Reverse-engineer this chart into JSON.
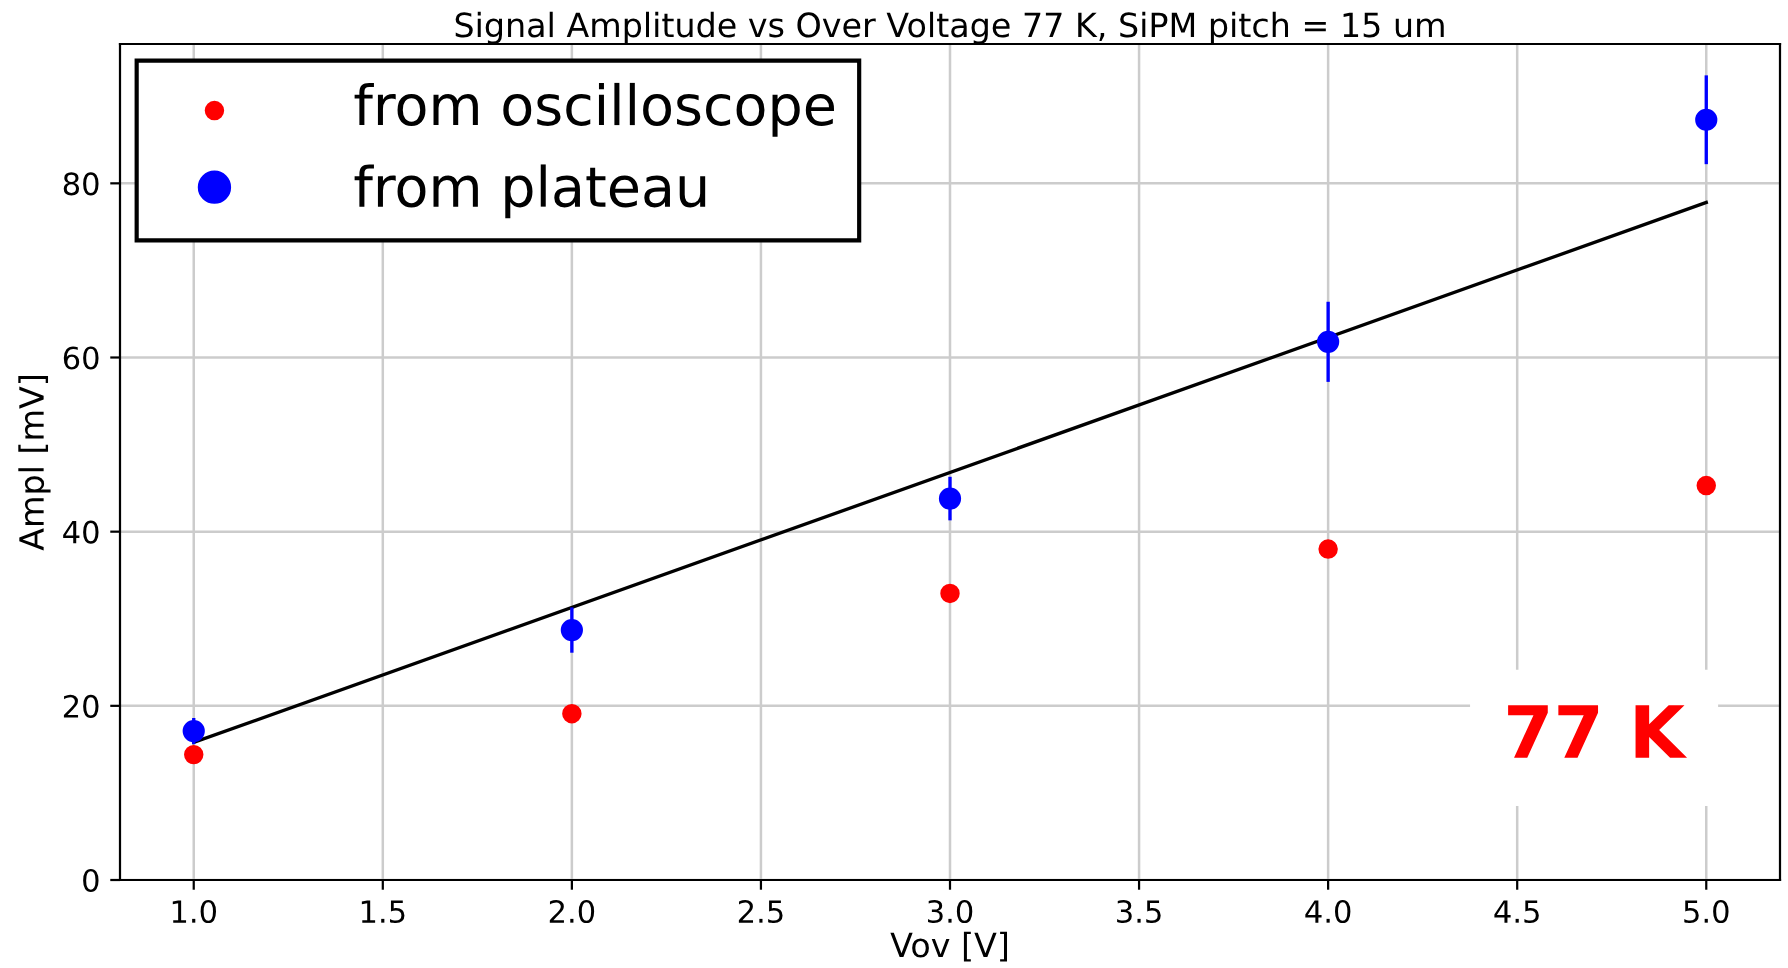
{
  "chart_data": {
    "type": "scatter",
    "title": "Signal Amplitude vs Over Voltage 77 K, SiPM pitch = 15 um",
    "xlabel": "Vov [V]",
    "ylabel": "Ampl [mV]",
    "x": [
      1.0,
      2.0,
      3.0,
      4.0,
      5.0
    ],
    "series": [
      {
        "name": "from oscilloscope",
        "color": "#ff0000",
        "values": [
          14.4,
          19.1,
          32.9,
          38.0,
          45.3
        ]
      },
      {
        "name": "from plateau",
        "color": "#0000ff",
        "values": [
          17.1,
          28.7,
          43.8,
          61.8,
          87.3
        ],
        "errors": [
          1.5,
          2.6,
          2.5,
          4.6,
          5.1
        ]
      },
      {
        "type": "line",
        "color": "#000000",
        "x": [
          1.0,
          5.0
        ],
        "values": [
          15.8,
          77.8
        ],
        "marker": "none"
      }
    ],
    "xlim": [
      0.805,
      5.195
    ],
    "ylim": [
      0,
      96
    ],
    "xticks": [
      {
        "value": 1.0,
        "label": "1.0"
      },
      {
        "value": 1.5,
        "label": "1.5"
      },
      {
        "value": 2.0,
        "label": "2.0"
      },
      {
        "value": 2.5,
        "label": "2.5"
      },
      {
        "value": 3.0,
        "label": "3.0"
      },
      {
        "value": 3.5,
        "label": "3.5"
      },
      {
        "value": 4.0,
        "label": "4.0"
      },
      {
        "value": 4.5,
        "label": "4.5"
      },
      {
        "value": 5.0,
        "label": "5.0"
      }
    ],
    "yticks": [
      0,
      20,
      40,
      60,
      80
    ],
    "annotations": [
      "77 K"
    ],
    "grid": true,
    "legend": "top left",
    "marker": "circle"
  }
}
